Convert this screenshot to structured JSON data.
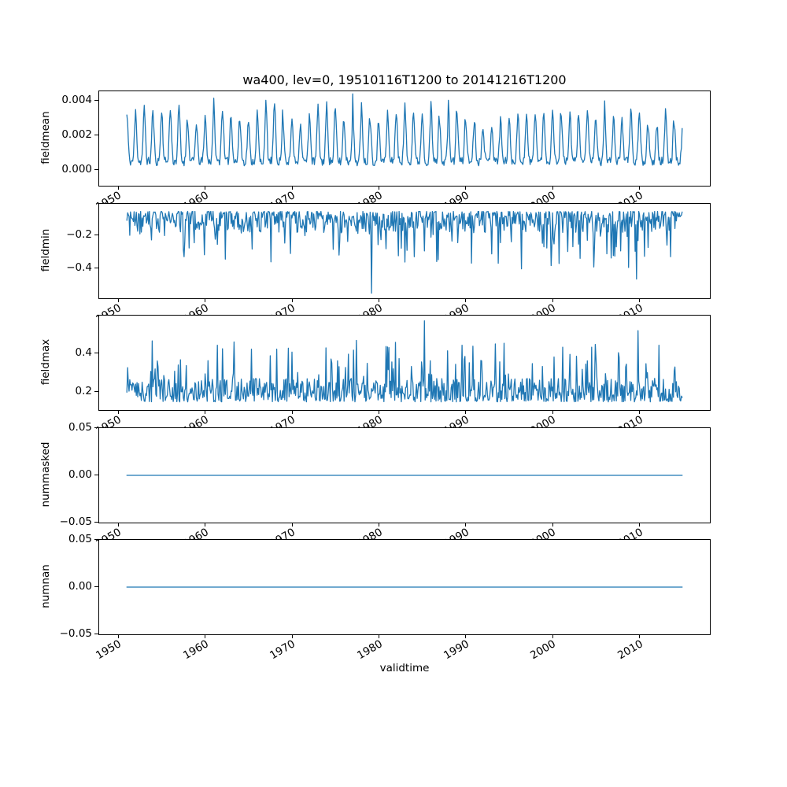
{
  "figure": {
    "title": "wa400, lev=0, 19510116T1200 to 20141216T1200",
    "xlabel": "validtime",
    "line_color": "#1f77b4",
    "background": "#ffffff"
  },
  "x_axis": {
    "label": "validtime",
    "lim": [
      1947.85,
      2018.15
    ],
    "data_start": 1951.042,
    "data_end": 2014.958,
    "samples_per_year": 12,
    "ticks": [
      {
        "v": 1950,
        "label": "1950"
      },
      {
        "v": 1960,
        "label": "1960"
      },
      {
        "v": 1970,
        "label": "1970"
      },
      {
        "v": 1980,
        "label": "1980"
      },
      {
        "v": 1990,
        "label": "1990"
      },
      {
        "v": 2000,
        "label": "2000"
      },
      {
        "v": 2010,
        "label": "2010"
      }
    ]
  },
  "chart_data": [
    {
      "type": "line",
      "ylabel": "fieldmean",
      "ylim": [
        -0.0009,
        0.00455
      ],
      "yticks": [
        {
          "v": 0.0,
          "label": "0.000"
        },
        {
          "v": 0.002,
          "label": "0.002"
        },
        {
          "v": 0.004,
          "label": "0.004"
        }
      ],
      "series": [
        {
          "name": "fieldmean",
          "color": "#1f77b4",
          "value_range": [
            0.0002,
            0.0044
          ],
          "synthesis": {
            "mode": "seasonal",
            "seed": 11,
            "lo": 0.0005,
            "peak_min": 0.0024,
            "peak_max": 0.0039,
            "sharpness": 3,
            "noise": 0.0005,
            "overrides": [
              {
                "year": 1961.042,
                "value": 0.00415
              },
              {
                "year": 1977.042,
                "value": 0.0044
              },
              {
                "year": 2006.042,
                "value": 0.004
              }
            ]
          }
        }
      ]
    },
    {
      "type": "line",
      "ylabel": "fieldmin",
      "ylim": [
        -0.5865,
        -0.0035
      ],
      "yticks": [
        {
          "v": -0.4,
          "label": "−0.4"
        },
        {
          "v": -0.2,
          "label": "−0.2"
        }
      ],
      "series": [
        {
          "name": "fieldmin",
          "color": "#1f77b4",
          "value_range": [
            -0.555,
            -0.04
          ],
          "synthesis": {
            "mode": "noisy",
            "seed": 22,
            "sign": -1,
            "base": -0.05,
            "shape": 1.8,
            "scatter": 0.13,
            "spike_prob": 0.1,
            "spike_min": 0.05,
            "spike_max": 0.25,
            "overrides": [
              {
                "year": 1957.6,
                "value": -0.33
              },
              {
                "year": 1962.4,
                "value": -0.345
              },
              {
                "year": 1969.9,
                "value": -0.31
              },
              {
                "year": 1975.5,
                "value": -0.32
              },
              {
                "year": 1979.25,
                "value": -0.555
              },
              {
                "year": 1984.1,
                "value": -0.33
              },
              {
                "year": 1990.7,
                "value": -0.37
              },
              {
                "year": 1996.5,
                "value": -0.405
              },
              {
                "year": 1999.9,
                "value": -0.385
              },
              {
                "year": 2003.2,
                "value": -0.34
              },
              {
                "year": 2009.75,
                "value": -0.468
              },
              {
                "year": 2013.6,
                "value": -0.33
              }
            ]
          }
        }
      ]
    },
    {
      "type": "line",
      "ylabel": "fieldmax",
      "ylim": [
        0.108,
        0.592
      ],
      "yticks": [
        {
          "v": 0.2,
          "label": "0.2"
        },
        {
          "v": 0.4,
          "label": "0.4"
        }
      ],
      "series": [
        {
          "name": "fieldmax",
          "color": "#1f77b4",
          "value_range": [
            0.13,
            0.565
          ],
          "synthesis": {
            "mode": "noisy",
            "seed": 33,
            "sign": 1,
            "base": 0.15,
            "shape": 1.5,
            "scatter": 0.12,
            "spike_prob": 0.12,
            "spike_min": 0.05,
            "spike_max": 0.2,
            "overrides": [
              {
                "year": 1954.0,
                "value": 0.462
              },
              {
                "year": 1961.5,
                "value": 0.44
              },
              {
                "year": 1968.3,
                "value": 0.42
              },
              {
                "year": 1977.5,
                "value": 0.465
              },
              {
                "year": 1982.0,
                "value": 0.455
              },
              {
                "year": 1985.3,
                "value": 0.565
              },
              {
                "year": 1989.6,
                "value": 0.44
              },
              {
                "year": 1994.5,
                "value": 0.45
              },
              {
                "year": 2001.2,
                "value": 0.43
              },
              {
                "year": 2009.9,
                "value": 0.515
              },
              {
                "year": 2012.3,
                "value": 0.44
              }
            ]
          }
        }
      ]
    },
    {
      "type": "line",
      "ylabel": "nummasked",
      "ylim": [
        -0.05,
        0.05
      ],
      "yticks": [
        {
          "v": -0.05,
          "label": "−0.05"
        },
        {
          "v": 0.0,
          "label": "0.00"
        },
        {
          "v": 0.05,
          "label": "0.05"
        }
      ],
      "series": [
        {
          "name": "nummasked",
          "color": "#1f77b4",
          "value_range": [
            0,
            0
          ],
          "synthesis": {
            "mode": "constant",
            "value": 0
          }
        }
      ]
    },
    {
      "type": "line",
      "ylabel": "numnan",
      "ylim": [
        -0.05,
        0.05
      ],
      "yticks": [
        {
          "v": -0.05,
          "label": "−0.05"
        },
        {
          "v": 0.0,
          "label": "0.00"
        },
        {
          "v": 0.05,
          "label": "0.05"
        }
      ],
      "series": [
        {
          "name": "numnan",
          "color": "#1f77b4",
          "value_range": [
            0,
            0
          ],
          "synthesis": {
            "mode": "constant",
            "value": 0
          }
        }
      ]
    }
  ]
}
